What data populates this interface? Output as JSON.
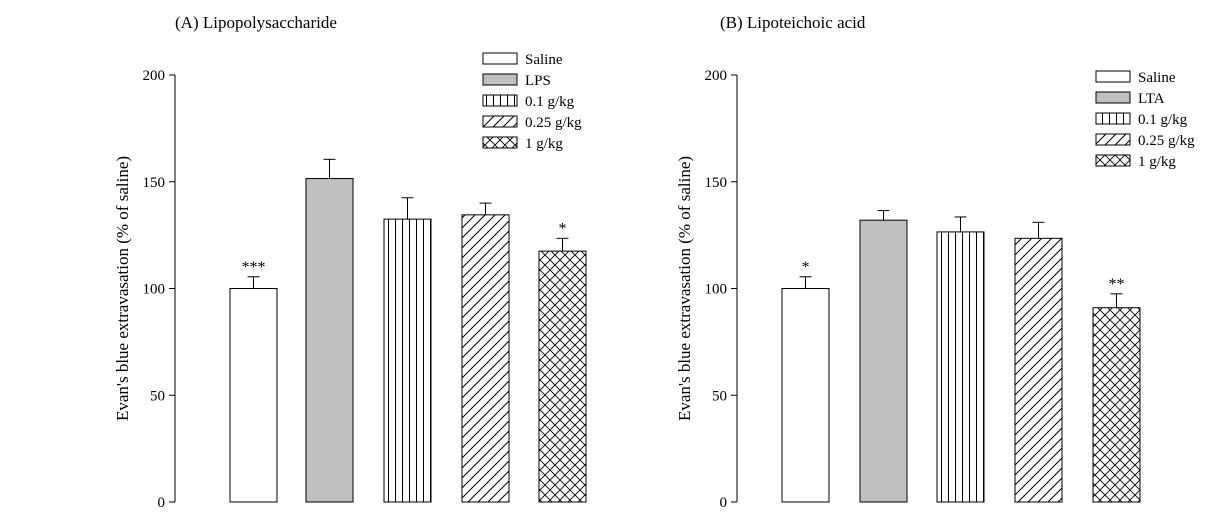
{
  "chart_data": [
    {
      "type": "bar",
      "title": "(A) Lipopolysaccharide",
      "ylabel": "Evan's blue extravasation (% of saline)",
      "xlabel": "",
      "ylim": [
        0,
        200
      ],
      "yticks": [
        "0",
        "50",
        "100",
        "150",
        "200"
      ],
      "categories": [
        "Saline",
        "LPS",
        "0.1 g/kg",
        "0.25 g/kg",
        "1 g/kg"
      ],
      "values": [
        100,
        151.5,
        132.5,
        134.5,
        117.5
      ],
      "errors": [
        5.5,
        9,
        10,
        5.5,
        6
      ],
      "significance": [
        "***",
        "",
        "",
        "",
        "*"
      ],
      "legend_position": "top-right"
    },
    {
      "type": "bar",
      "title": "(B) Lipoteichoic acid",
      "ylabel": "Evan's blue extravasation (% of saline)",
      "xlabel": "",
      "ylim": [
        0,
        200
      ],
      "yticks": [
        "0",
        "50",
        "100",
        "150",
        "200"
      ],
      "categories": [
        "Saline",
        "LTA",
        "0.1 g/kg",
        "0.25 g/kg",
        "1 g/kg"
      ],
      "values": [
        100,
        132,
        126.5,
        123.5,
        91
      ],
      "errors": [
        5.5,
        4.5,
        7,
        7.5,
        6.5
      ],
      "significance": [
        "*",
        "",
        "",
        "",
        "**"
      ],
      "legend_position": "top-right"
    }
  ],
  "patterns": [
    "none",
    "gray",
    "vertical-lines",
    "diagonal-lines",
    "crosshatch"
  ],
  "colors": {
    "gray_fill": "#c0c0c0",
    "line": "#000000",
    "background": "#ffffff"
  }
}
